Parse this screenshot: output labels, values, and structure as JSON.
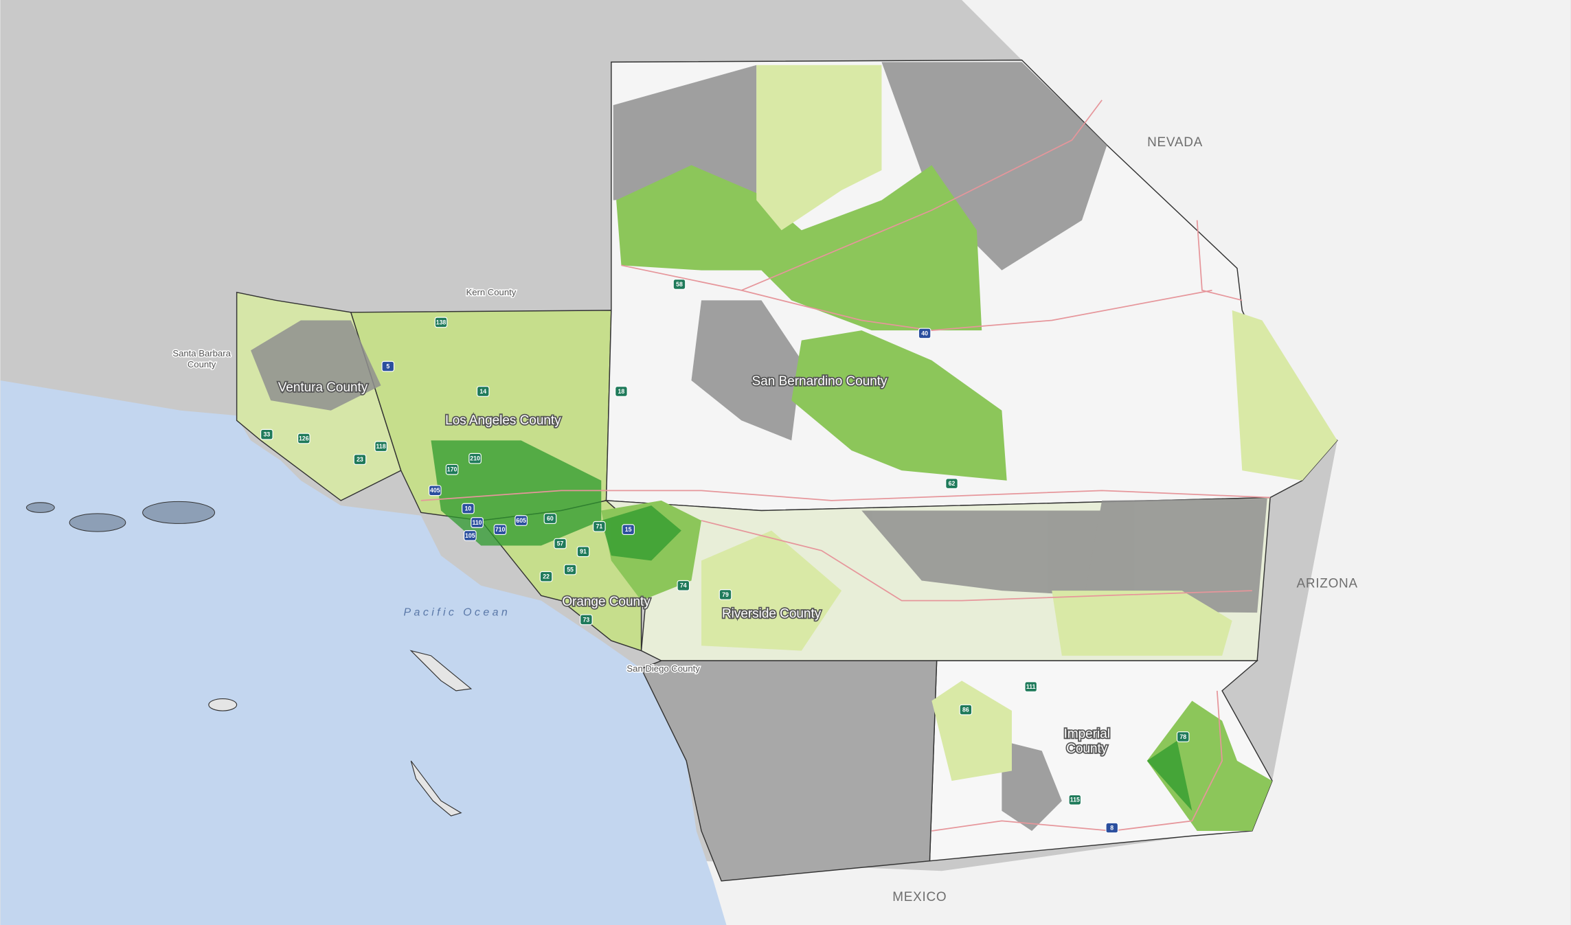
{
  "map": {
    "regions": [
      "NEVADA",
      "ARIZONA",
      "MEXICO"
    ],
    "counties": [
      [
        "Kern County"
      ],
      [
        "Santa Barbara",
        "County"
      ],
      [
        "Ventura County"
      ],
      [
        "Los Angeles County"
      ],
      [
        "San Bernardino County"
      ],
      [
        "Orange County"
      ],
      [
        "Riverside County"
      ],
      [
        "San Diego County"
      ],
      [
        "Imperial",
        "County"
      ]
    ],
    "water": [
      "Pacific Ocean"
    ],
    "shields": [
      "5",
      "14",
      "138",
      "18",
      "58",
      "40",
      "15",
      "62",
      "10",
      "210",
      "405",
      "105",
      "110",
      "710",
      "605",
      "60",
      "57",
      "91",
      "55",
      "22",
      "73",
      "71",
      "74",
      "79",
      "111",
      "86",
      "78",
      "115",
      "8",
      "33",
      "126",
      "118",
      "23",
      "170"
    ]
  }
}
